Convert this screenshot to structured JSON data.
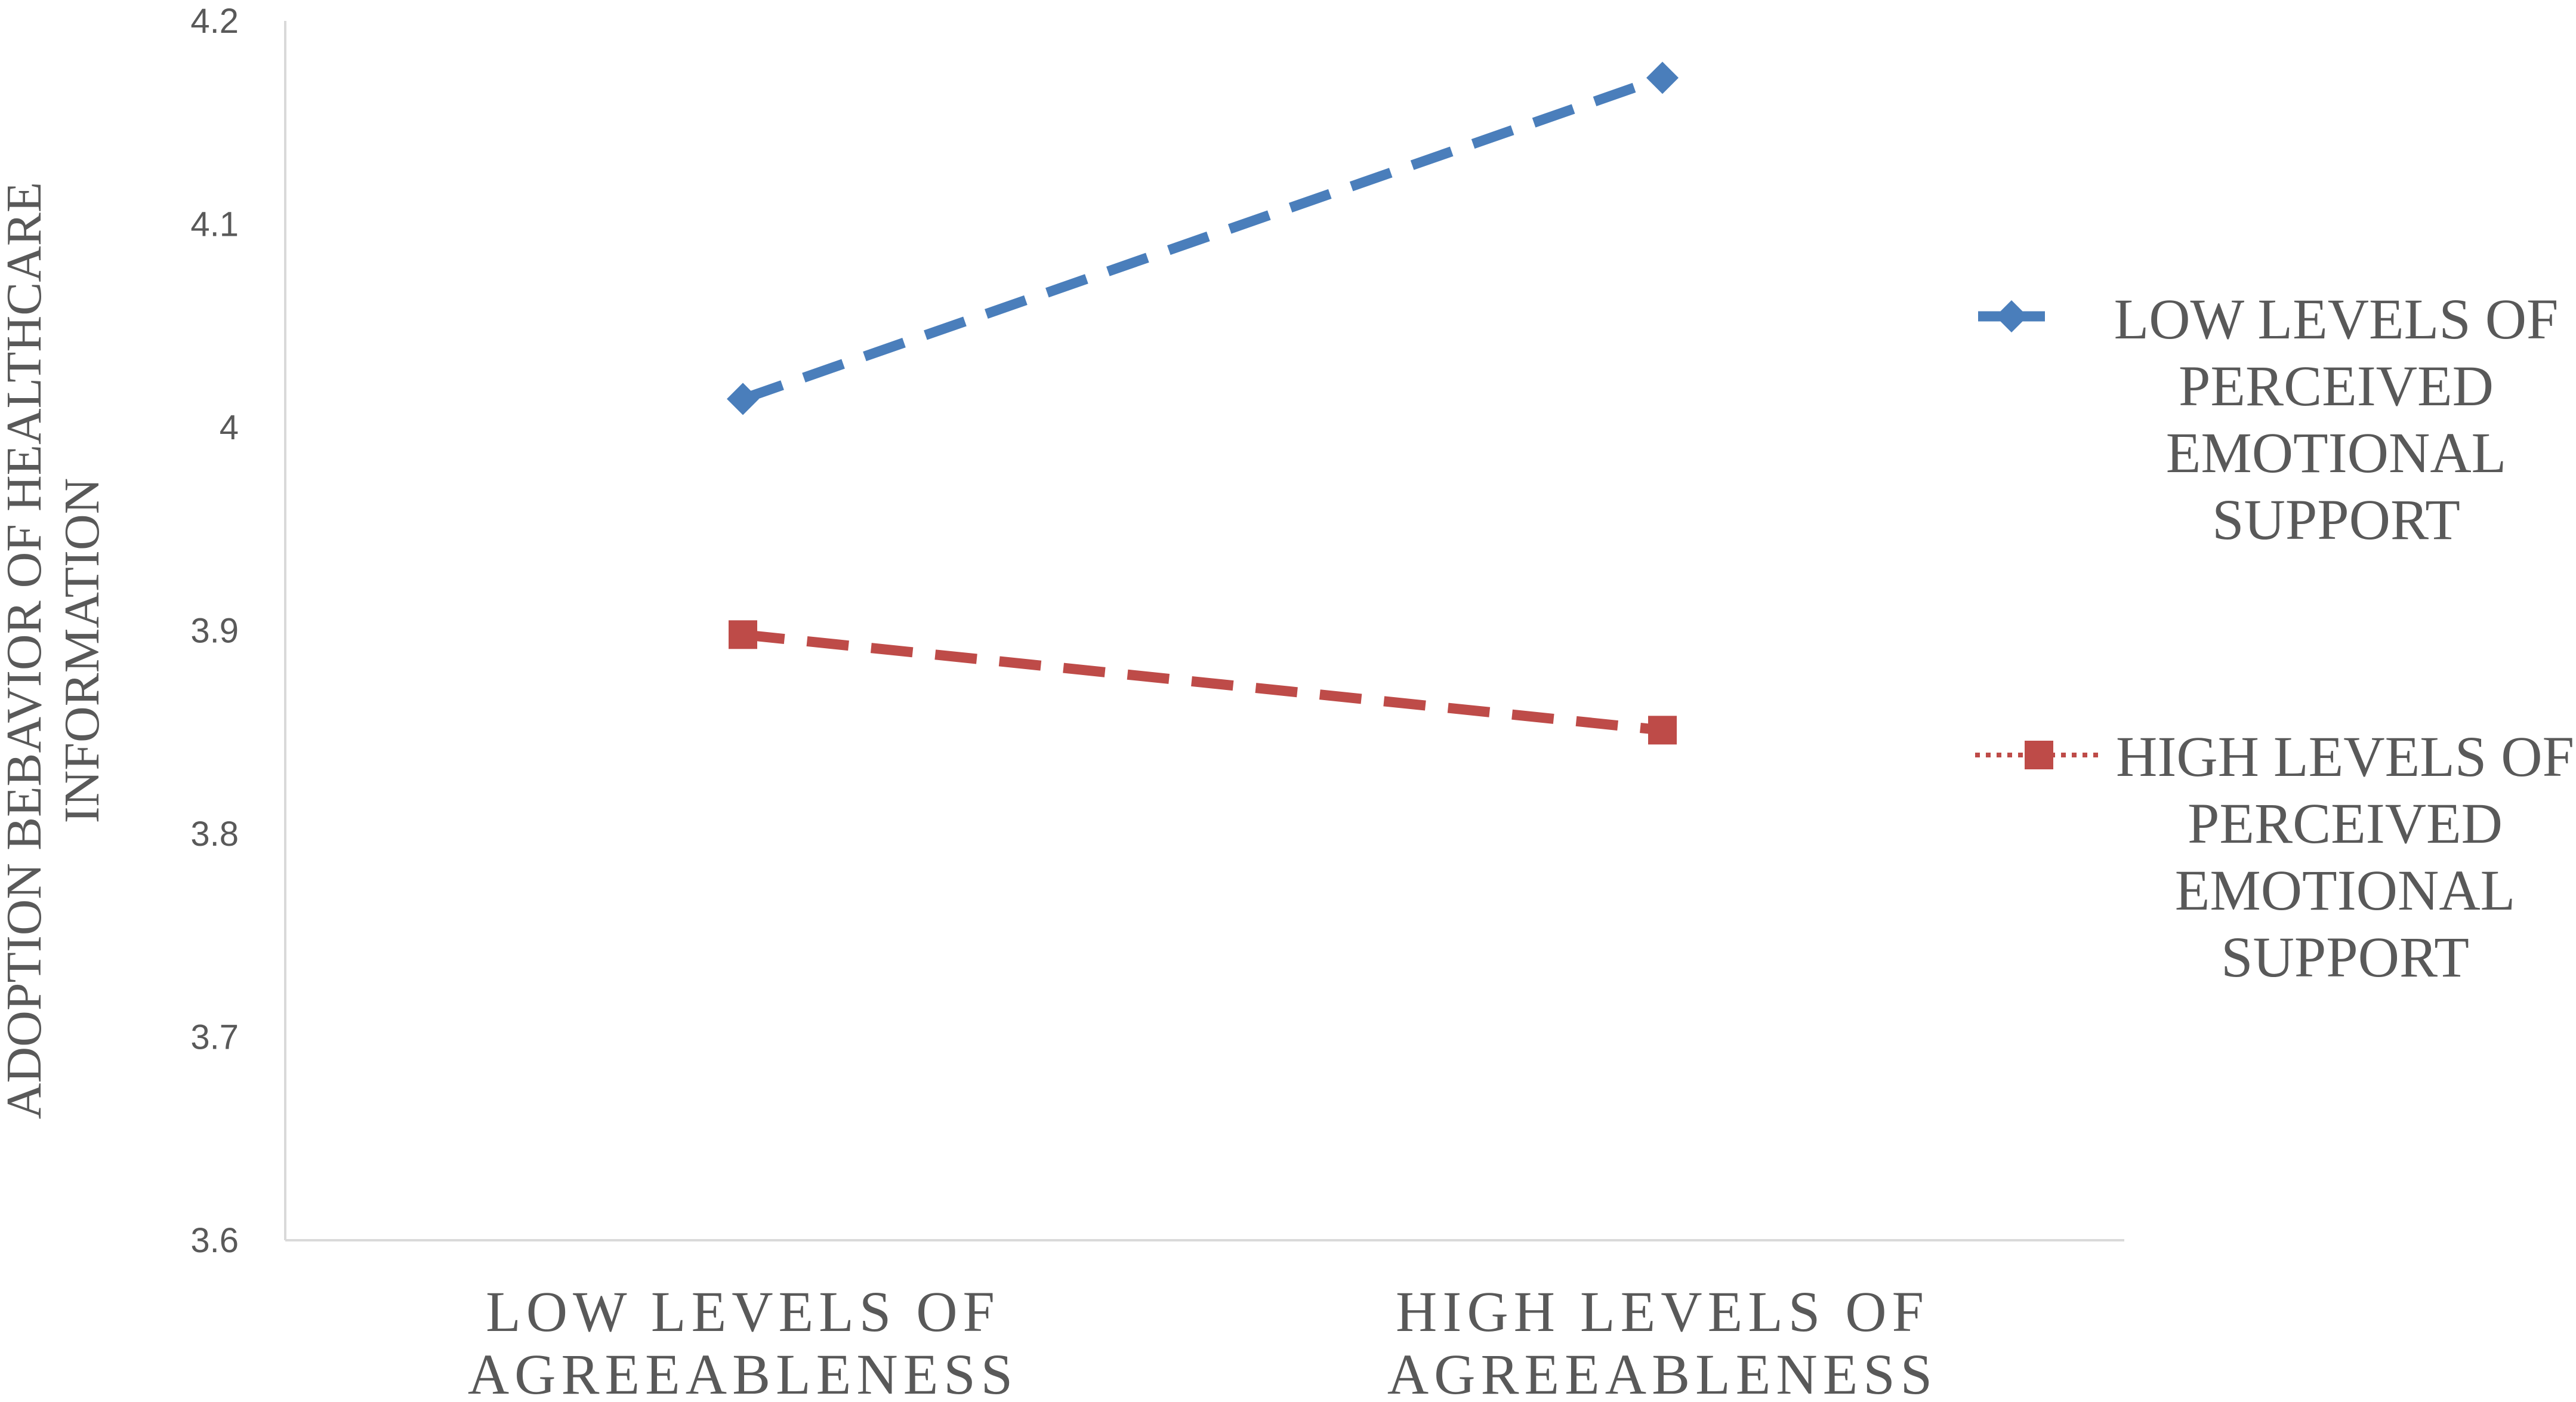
{
  "chart_data": {
    "type": "line",
    "title": "",
    "ylabel": [
      "ADOPTION BEBAVIOR OF HEALTHCARE",
      "INFORMATION"
    ],
    "xlabel": "",
    "categories": [
      [
        "LOW LEVELS OF",
        "AGREEABLENESS"
      ],
      [
        "HIGH LEVELS OF",
        "AGREEABLENESS"
      ]
    ],
    "yticks": [
      "3.6",
      "3.7",
      "3.8",
      "3.9",
      "4",
      "4.1",
      "4.2"
    ],
    "ylim": [
      3.6,
      4.2
    ],
    "grid": false,
    "legend_position": "right",
    "series": [
      {
        "name": [
          "LOW LEVELS OF",
          "PERCEIVED",
          "EMOTIONAL",
          "SUPPORT"
        ],
        "values": [
          4.014,
          4.172
        ],
        "color": "#4a7ebb",
        "marker": "diamond",
        "line_style": "dashed"
      },
      {
        "name": [
          "HIGH LEVELS OF",
          "PERCEIVED",
          "EMOTIONAL",
          "SUPPORT"
        ],
        "values": [
          3.898,
          3.851
        ],
        "color": "#be4b48",
        "marker": "square",
        "line_style": "dashed"
      }
    ]
  }
}
